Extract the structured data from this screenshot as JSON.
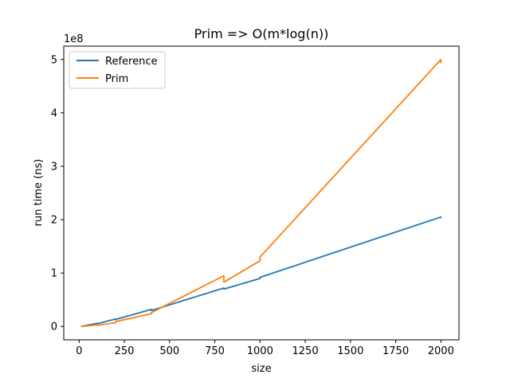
{
  "chart_data": {
    "type": "line",
    "title": "Prim => O(m*log(n))",
    "xlabel": "size",
    "ylabel": "run time (ns)",
    "y_offset_label": "1e8",
    "xlim": [
      -85,
      2100
    ],
    "ylim": [
      -0.25,
      5.25
    ],
    "xticks": [
      0,
      250,
      500,
      750,
      1000,
      1250,
      1500,
      1750,
      2000
    ],
    "yticks": [
      0,
      1,
      2,
      3,
      4,
      5
    ],
    "grid": false,
    "legend_position": "top-left",
    "series": [
      {
        "name": "Reference",
        "color": "#1f77b4",
        "x": [
          10,
          100,
          100,
          200,
          200,
          400,
          400,
          800,
          800,
          1000,
          1000,
          2000,
          2000
        ],
        "y": [
          0.0,
          0.06,
          0.05,
          0.14,
          0.13,
          0.32,
          0.3,
          0.72,
          0.7,
          0.9,
          0.92,
          2.05,
          2.03
        ]
      },
      {
        "name": "Prim",
        "color": "#ff7f0e",
        "x": [
          10,
          100,
          100,
          200,
          200,
          400,
          400,
          800,
          800,
          1000,
          1000,
          2000,
          2000
        ],
        "y": [
          0.0,
          0.03,
          0.02,
          0.07,
          0.09,
          0.24,
          0.26,
          0.95,
          0.83,
          1.23,
          1.3,
          5.0,
          4.93
        ]
      }
    ]
  }
}
